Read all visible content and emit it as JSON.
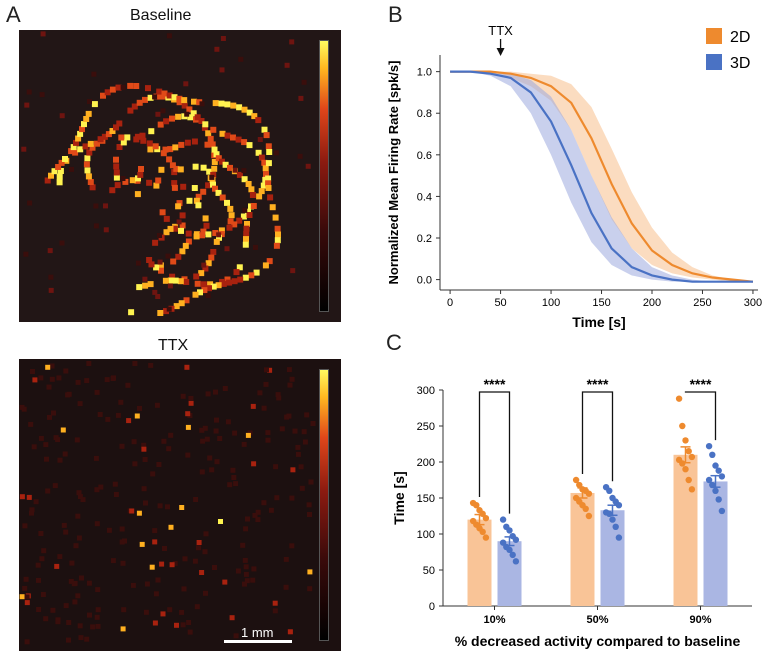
{
  "figure": {
    "panel_a": {
      "letter": "A",
      "top_title": "Baseline",
      "bottom_title": "TTX",
      "scalebar_label": "1 mm"
    },
    "panel_b": {
      "letter": "B"
    },
    "panel_c": {
      "letter": "C"
    }
  },
  "chart_data": [
    {
      "type": "line",
      "title": "",
      "xlabel": "Time [s]",
      "ylabel": "Normalized Mean Firing Rate [spk/s]",
      "xlim": [
        -10,
        305
      ],
      "ylim": [
        -0.05,
        1.08
      ],
      "xticks": [
        0,
        50,
        100,
        150,
        200,
        250,
        300
      ],
      "yticks": [
        0.0,
        0.2,
        0.4,
        0.6,
        0.8,
        1.0
      ],
      "annotation": {
        "text": "TTX",
        "x": 50
      },
      "legend_position": "top-right",
      "series": [
        {
          "name": "2D",
          "color": "#ee8a2e",
          "band_color": "#f7c08c",
          "x": [
            0,
            20,
            40,
            60,
            80,
            100,
            120,
            140,
            160,
            180,
            200,
            220,
            240,
            260,
            280,
            300
          ],
          "mean": [
            1.0,
            1.0,
            1.0,
            0.99,
            0.97,
            0.93,
            0.85,
            0.68,
            0.46,
            0.27,
            0.14,
            0.07,
            0.03,
            0.01,
            0.0,
            -0.01
          ],
          "lower": [
            1.0,
            1.0,
            0.99,
            0.97,
            0.93,
            0.86,
            0.72,
            0.5,
            0.29,
            0.15,
            0.07,
            0.03,
            0.01,
            0.0,
            -0.01,
            -0.01
          ],
          "upper": [
            1.0,
            1.0,
            1.0,
            1.0,
            0.99,
            0.98,
            0.94,
            0.83,
            0.63,
            0.42,
            0.25,
            0.13,
            0.06,
            0.02,
            0.0,
            -0.01
          ]
        },
        {
          "name": "3D",
          "color": "#4a72c4",
          "band_color": "#9ca9de",
          "x": [
            0,
            20,
            40,
            60,
            80,
            100,
            120,
            140,
            160,
            180,
            200,
            220,
            240,
            260,
            280,
            300
          ],
          "mean": [
            1.0,
            1.0,
            0.99,
            0.97,
            0.9,
            0.76,
            0.55,
            0.32,
            0.15,
            0.06,
            0.02,
            0.0,
            -0.01,
            -0.01,
            -0.01,
            -0.01
          ],
          "lower": [
            1.0,
            1.0,
            0.98,
            0.93,
            0.8,
            0.6,
            0.37,
            0.18,
            0.07,
            0.02,
            0.0,
            -0.01,
            -0.01,
            -0.01,
            -0.01,
            -0.01
          ],
          "upper": [
            1.0,
            1.0,
            1.0,
            0.99,
            0.96,
            0.88,
            0.72,
            0.5,
            0.3,
            0.15,
            0.06,
            0.02,
            0.0,
            -0.01,
            -0.01,
            -0.01
          ]
        }
      ]
    },
    {
      "type": "bar",
      "title": "",
      "xlabel": "% decreased activity compared to baseline",
      "ylabel": "Time [s]",
      "ylim": [
        0,
        300
      ],
      "yticks": [
        0,
        50,
        100,
        150,
        200,
        250,
        300
      ],
      "categories": [
        "10%",
        "50%",
        "90%"
      ],
      "significance": [
        "****",
        "****",
        "****"
      ],
      "series": [
        {
          "name": "2D",
          "color": "#ee8a2e",
          "bar_color": "#f9c497",
          "values": [
            120,
            157,
            210
          ],
          "sem": [
            7,
            7,
            11
          ],
          "points": [
            [
              143,
              140,
              133,
              128,
              122,
              118,
              113,
              108,
              103,
              95
            ],
            [
              175,
              168,
              162,
              160,
              156,
              150,
              145,
              140,
              135,
              125
            ],
            [
              288,
              250,
              230,
              215,
              207,
              203,
              198,
              190,
              175,
              162
            ]
          ]
        },
        {
          "name": "3D",
          "color": "#4a72c4",
          "bar_color": "#aab6e3",
          "values": [
            90,
            133,
            173
          ],
          "sem": [
            6,
            7,
            8
          ],
          "points": [
            [
              120,
              110,
              105,
              97,
              92,
              88,
              82,
              78,
              71,
              62
            ],
            [
              165,
              160,
              150,
              145,
              140,
              130,
              128,
              120,
              110,
              95
            ],
            [
              222,
              210,
              195,
              188,
              180,
              175,
              168,
              160,
              148,
              132
            ]
          ]
        }
      ]
    }
  ]
}
